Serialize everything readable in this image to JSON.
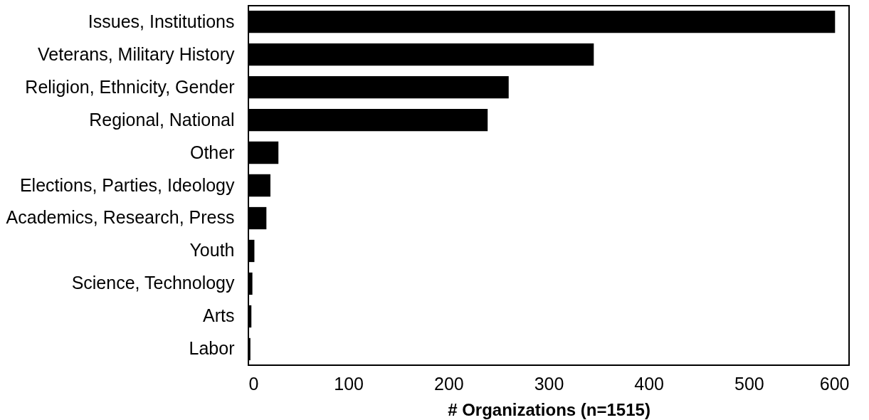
{
  "chart_data": {
    "type": "bar",
    "orientation": "horizontal",
    "xlabel": "# Organizations (n=1515)",
    "categories": [
      "Issues, Institutions",
      "Veterans, Military History",
      "Religion, Ethnicity, Gender",
      "Regional, National",
      "Other",
      "Elections, Parties, Ideology",
      "Academics, Research, Press",
      "Youth",
      "Science, Technology",
      "Arts",
      "Labor"
    ],
    "values": [
      586,
      345,
      260,
      239,
      30,
      22,
      18,
      6,
      4,
      3,
      2
    ],
    "color": "#000000",
    "xlim": [
      0,
      600
    ],
    "xticks": [
      0,
      100,
      200,
      300,
      400,
      500,
      600
    ],
    "grid": false
  }
}
